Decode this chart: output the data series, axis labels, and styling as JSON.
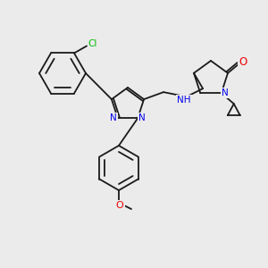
{
  "background_color": "#ebebeb",
  "bond_color": "#1a1a1a",
  "figsize": [
    3.0,
    3.0
  ],
  "dpi": 100,
  "atom_colors": {
    "N": "#0000ee",
    "O": "#ee0000",
    "Cl": "#00bb00"
  },
  "lw": 1.3,
  "double_sep": 2.2,
  "label_fontsize": 8.0,
  "label_fontsize_small": 7.5
}
